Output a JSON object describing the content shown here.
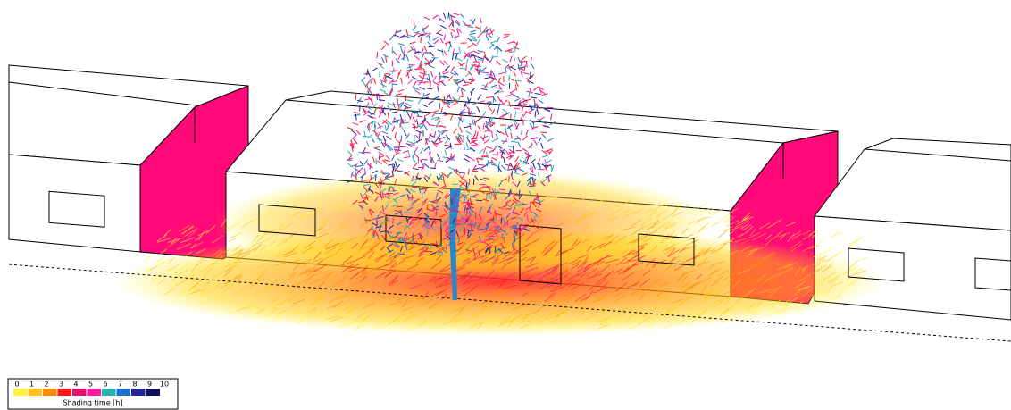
{
  "legend": {
    "title": "Shading time [h]",
    "ticks": [
      0,
      1,
      2,
      3,
      4,
      5,
      6,
      7,
      8,
      9,
      10
    ],
    "colors": [
      "#fff23a",
      "#ffc21a",
      "#ff8c00",
      "#ff1a1a",
      "#e8106a",
      "#ff1aa0",
      "#22b3b0",
      "#1f6fd0",
      "#22229a",
      "#0f0f5c"
    ]
  }
}
